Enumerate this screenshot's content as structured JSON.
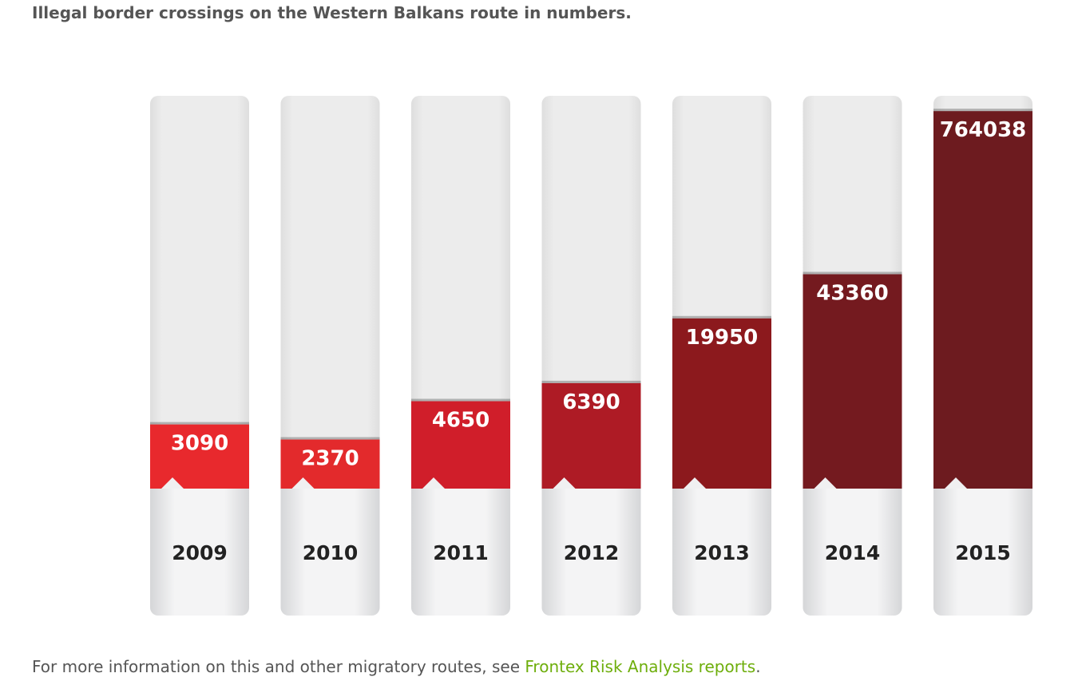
{
  "title": "Illegal border crossings on the Western Balkans route in numbers.",
  "chart_data": {
    "type": "bar",
    "categories": [
      "2009",
      "2010",
      "2011",
      "2012",
      "2013",
      "2014",
      "2015"
    ],
    "values": [
      3090,
      2370,
      4650,
      6390,
      19950,
      43360,
      764038
    ],
    "colors": [
      "#e8292d",
      "#e32a2c",
      "#d01e2a",
      "#ae1b25",
      "#8c191d",
      "#741a1f",
      "#6d1b1f"
    ],
    "ylim": [
      1000,
      1000000
    ],
    "log_scale": true
  },
  "footer": {
    "text": "For more information on this and other migratory routes, see ",
    "link": "Frontex Risk Analysis reports",
    "end": "."
  }
}
